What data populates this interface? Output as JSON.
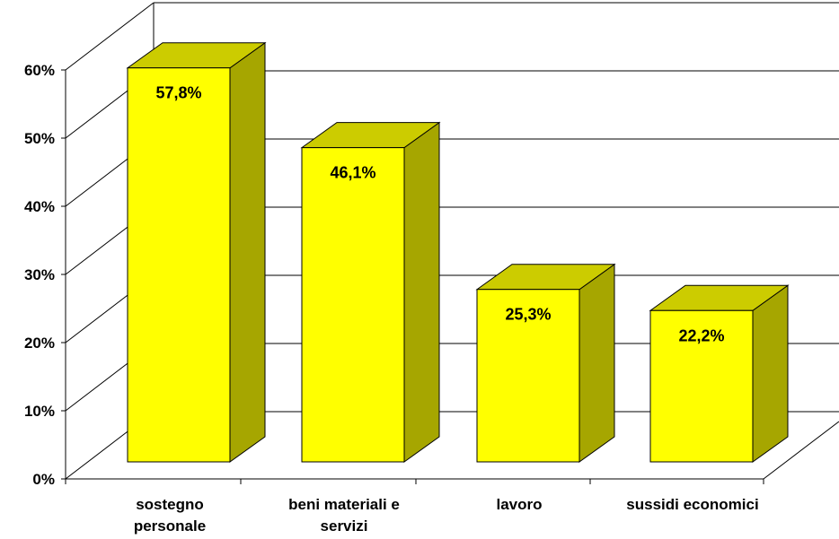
{
  "chart_data": {
    "type": "bar",
    "style": "3d-column",
    "categories": [
      [
        "sostegno",
        "personale"
      ],
      [
        "beni materiali e",
        "servizi"
      ],
      [
        "lavoro"
      ],
      [
        "sussidi economici"
      ]
    ],
    "values": [
      57.8,
      46.1,
      25.3,
      22.2
    ],
    "data_labels": [
      "57,8%",
      "46,1%",
      "25,3%",
      "22,2%"
    ],
    "ylim": [
      0,
      60
    ],
    "yticks": [
      0,
      10,
      20,
      30,
      40,
      50,
      60
    ],
    "ytick_labels": [
      "0%",
      "10%",
      "20%",
      "30%",
      "40%",
      "50%",
      "60%"
    ],
    "grid": true,
    "legend": "none",
    "title": "",
    "xlabel": "",
    "ylabel": "",
    "colors": {
      "bar_front": "#FFFF00",
      "bar_top": "#CCCC00",
      "bar_side": "#A6A600",
      "grid": "#000000",
      "axis": "#000000"
    }
  }
}
